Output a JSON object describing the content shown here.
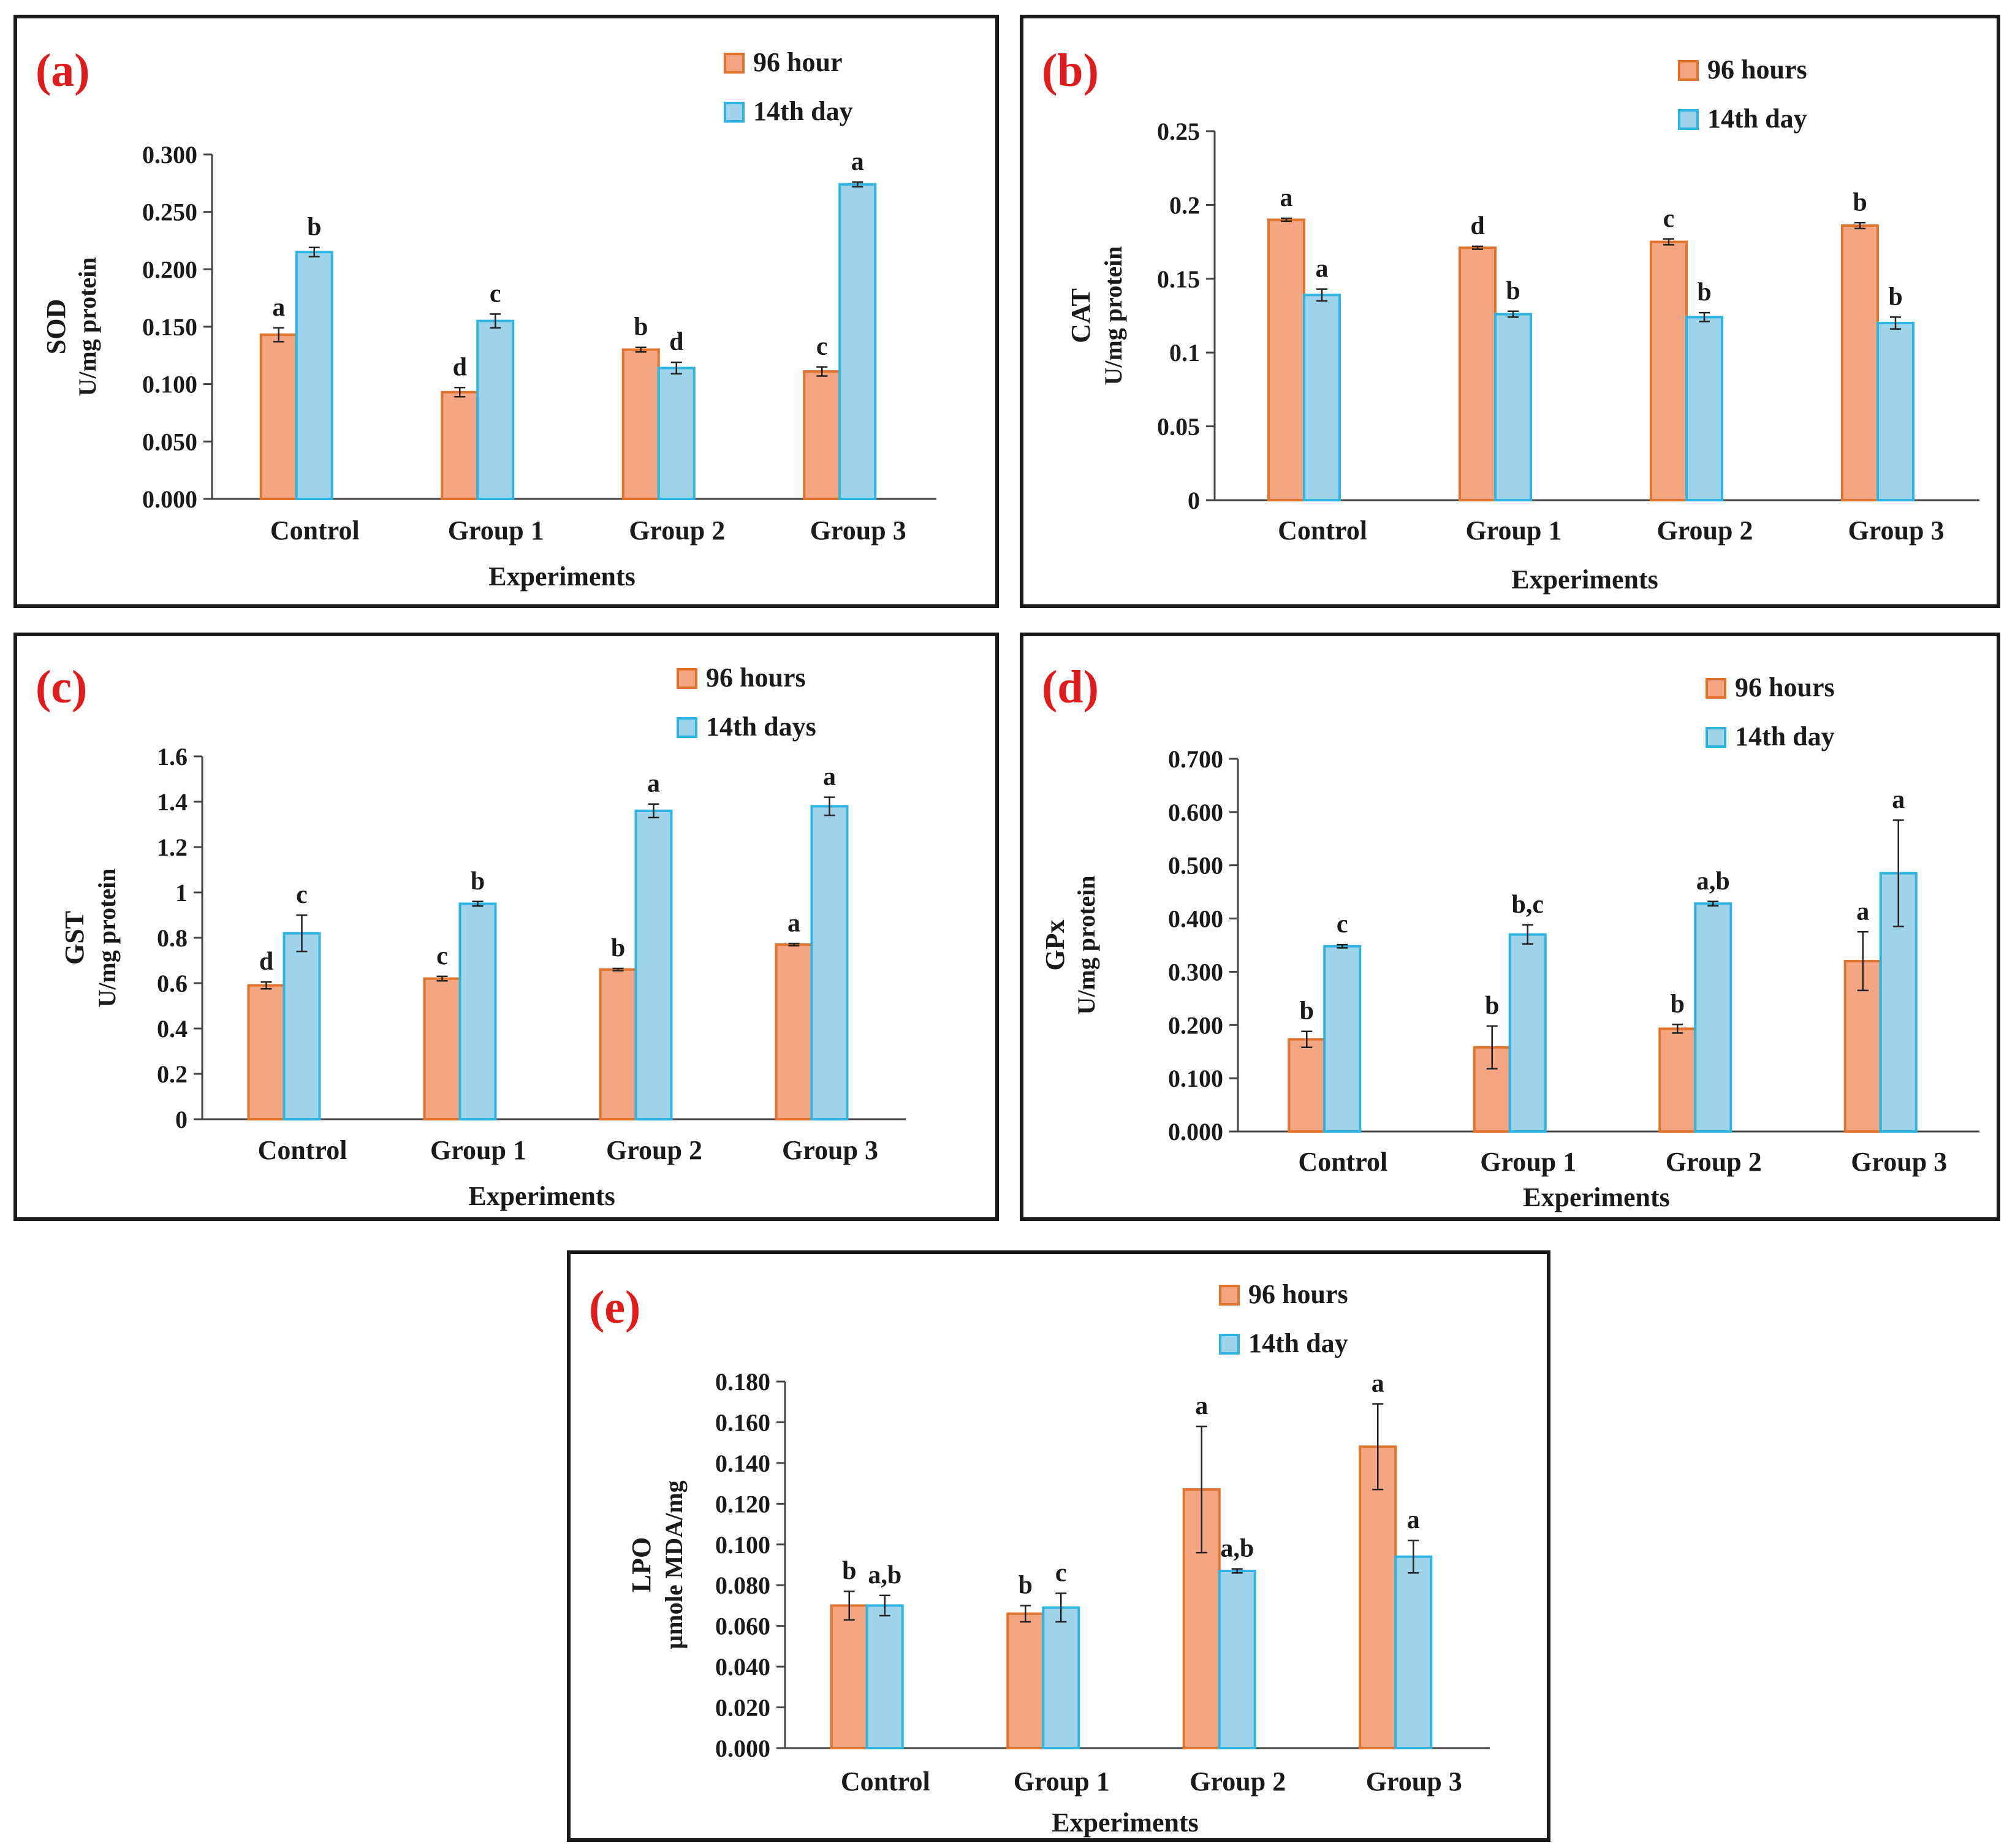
{
  "figure": {
    "series_colors": {
      "hours96": "#f4a582",
      "day14": "#9fd3ea",
      "border96": "#e0742c",
      "border14": "#2eb4e0",
      "letter": "#e01b1b"
    }
  },
  "chart_data": [
    {
      "type": "bar",
      "panel_label": "(a)",
      "categories": [
        "Control",
        "Group 1",
        "Group 2",
        "Group 3"
      ],
      "series": [
        {
          "name": "96 hour",
          "values": [
            0.143,
            0.093,
            0.13,
            0.111
          ],
          "errors": [
            0.006,
            0.004,
            0.002,
            0.004
          ],
          "sig": [
            "a",
            "d",
            "b",
            "c"
          ]
        },
        {
          "name": "14th day",
          "values": [
            0.215,
            0.155,
            0.114,
            0.274
          ],
          "errors": [
            0.004,
            0.006,
            0.005,
            0.002
          ],
          "sig": [
            "b",
            "c",
            "d",
            "a"
          ]
        }
      ],
      "ylabel": "SOD",
      "ylabel2": "U/mg protein",
      "xlabel": "Experiments",
      "ylim": [
        0,
        0.3
      ],
      "yticks": [
        "0.000",
        "0.050",
        "0.100",
        "0.150",
        "0.200",
        "0.250",
        "0.300"
      ],
      "legend_position": "top-right"
    },
    {
      "type": "bar",
      "panel_label": "(b)",
      "categories": [
        "Control",
        "Group 1",
        "Group 2",
        "Group 3"
      ],
      "series": [
        {
          "name": "96 hours",
          "values": [
            0.19,
            0.171,
            0.175,
            0.186
          ],
          "errors": [
            0.001,
            0.001,
            0.002,
            0.002
          ],
          "sig": [
            "a",
            "d",
            "c",
            "b"
          ]
        },
        {
          "name": "14th day",
          "values": [
            0.139,
            0.126,
            0.124,
            0.12
          ],
          "errors": [
            0.004,
            0.002,
            0.003,
            0.004
          ],
          "sig": [
            "a",
            "b",
            "b",
            "b"
          ]
        }
      ],
      "ylabel": "CAT",
      "ylabel2": "U/mg protein",
      "xlabel": "Experiments",
      "ylim": [
        0,
        0.25
      ],
      "yticks": [
        "0",
        "0.05",
        "0.1",
        "0.15",
        "0.2",
        "0.25"
      ],
      "legend_position": "top-right"
    },
    {
      "type": "bar",
      "panel_label": "(c)",
      "categories": [
        "Control",
        "Group 1",
        "Group 2",
        "Group 3"
      ],
      "series": [
        {
          "name": "96 hours",
          "values": [
            0.59,
            0.62,
            0.66,
            0.77
          ],
          "errors": [
            0.015,
            0.01,
            0.005,
            0.005
          ],
          "sig": [
            "d",
            "c",
            "b",
            "a"
          ]
        },
        {
          "name": "14th days",
          "values": [
            0.82,
            0.95,
            1.36,
            1.38
          ],
          "errors": [
            0.08,
            0.01,
            0.03,
            0.04
          ],
          "sig": [
            "c",
            "b",
            "a",
            "a"
          ]
        }
      ],
      "ylabel": "GST",
      "ylabel2": "U/mg  protein",
      "xlabel": "Experiments",
      "ylim": [
        0,
        1.6
      ],
      "yticks": [
        "0",
        "0.2",
        "0.4",
        "0.6",
        "0.8",
        "1",
        "1.2",
        "1.4",
        "1.6"
      ],
      "legend_position": "top-right"
    },
    {
      "type": "bar",
      "panel_label": "(d)",
      "categories": [
        "Control",
        "Group 1",
        "Group 2",
        "Group 3"
      ],
      "series": [
        {
          "name": "96 hours",
          "values": [
            0.173,
            0.158,
            0.193,
            0.32
          ],
          "errors": [
            0.015,
            0.04,
            0.008,
            0.055
          ],
          "sig": [
            "b",
            "b",
            "b",
            "a"
          ]
        },
        {
          "name": "14th day",
          "values": [
            0.348,
            0.37,
            0.428,
            0.485
          ],
          "errors": [
            0.003,
            0.018,
            0.004,
            0.1
          ],
          "sig": [
            "c",
            "b,c",
            "a,b",
            "a"
          ]
        }
      ],
      "ylabel": "GPx",
      "ylabel2": "U/mg protein",
      "xlabel": "Experiments",
      "ylim": [
        0,
        0.7
      ],
      "yticks": [
        "0.000",
        "0.100",
        "0.200",
        "0.300",
        "0.400",
        "0.500",
        "0.600",
        "0.700"
      ],
      "legend_position": "top-right"
    },
    {
      "type": "bar",
      "panel_label": "(e)",
      "categories": [
        "Control",
        "Group 1",
        "Group 2",
        "Group 3"
      ],
      "series": [
        {
          "name": "96 hours",
          "values": [
            0.07,
            0.066,
            0.127,
            0.148
          ],
          "errors": [
            0.007,
            0.004,
            0.031,
            0.021
          ],
          "sig": [
            "b",
            "b",
            "a",
            "a"
          ]
        },
        {
          "name": "14th day",
          "values": [
            0.07,
            0.069,
            0.087,
            0.094
          ],
          "errors": [
            0.005,
            0.007,
            0.001,
            0.008
          ],
          "sig": [
            "a,b",
            "c",
            "a,b",
            "a"
          ]
        }
      ],
      "ylabel": "LPO",
      "ylabel2": "µmole MDA/mg",
      "xlabel": "Experiments",
      "ylim": [
        0,
        0.18
      ],
      "yticks": [
        "0.000",
        "0.020",
        "0.040",
        "0.060",
        "0.080",
        "0.100",
        "0.120",
        "0.140",
        "0.160",
        "0.180"
      ],
      "legend_position": "top-right"
    }
  ]
}
